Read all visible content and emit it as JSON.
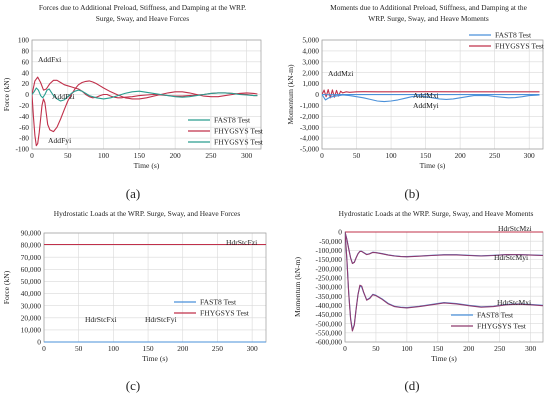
{
  "chart_data": [
    {
      "id": "a",
      "type": "line",
      "panel_label": "(a)",
      "title": "Forces due to Additional Preload, Stiffness, and Damping at the WRP. Surge, Sway, and Heave Forces",
      "xlabel": "Time (s)",
      "ylabel": "Force (kN)",
      "xlim": [
        0,
        320
      ],
      "ylim": [
        -100,
        100
      ],
      "xticks": [
        0,
        50,
        100,
        150,
        200,
        250,
        300
      ],
      "yticks": [
        -100,
        -80,
        -60,
        -40,
        -20,
        0,
        20,
        40,
        60,
        80,
        100
      ],
      "grid": true,
      "legend": "bottom-right",
      "legend_entries": [
        "FAST8 Test",
        "FHYGSYS Test",
        "FHYGSYS Test"
      ],
      "annotations": [
        "AddFxi",
        "AddFzi",
        "AddFyi"
      ],
      "series": [
        {
          "name": "AddFxi",
          "color": "#c0304a",
          "x": [
            0,
            4,
            8,
            12,
            16,
            20,
            25,
            30,
            35,
            40,
            45,
            50,
            55,
            60,
            65,
            70,
            75,
            80,
            85,
            90,
            95,
            100,
            105,
            110,
            115,
            120,
            125,
            130,
            140,
            150,
            160,
            170,
            180,
            190,
            200,
            210,
            220,
            230,
            240,
            250,
            260,
            270,
            280,
            290,
            300,
            310,
            315
          ],
          "y": [
            0,
            25,
            32,
            22,
            8,
            10,
            20,
            26,
            26,
            22,
            18,
            16,
            14,
            12,
            10,
            6,
            0,
            -4,
            -6,
            -5,
            -2,
            0,
            0,
            -3,
            -5,
            -6,
            -6,
            -5,
            -4,
            -2,
            -1,
            0,
            -1,
            -2,
            -3,
            -3,
            -2,
            -1,
            0,
            2,
            3,
            3,
            2,
            1,
            0,
            -2,
            -2
          ]
        },
        {
          "name": "AddFyi",
          "color": "#c0304a",
          "x": [
            0,
            2,
            4,
            6,
            8,
            10,
            12,
            14,
            16,
            18,
            20,
            22,
            25,
            30,
            35,
            40,
            45,
            50,
            55,
            60,
            65,
            70,
            75,
            80,
            85,
            90,
            95,
            100,
            110,
            120,
            130,
            140,
            150,
            160,
            170,
            180,
            190,
            200,
            210,
            220,
            230,
            240,
            250,
            260,
            270,
            280,
            290,
            300,
            310,
            315
          ],
          "y": [
            0,
            -40,
            -75,
            -94,
            -90,
            -70,
            -45,
            -20,
            -8,
            -15,
            -35,
            -55,
            -65,
            -68,
            -60,
            -45,
            -28,
            -12,
            0,
            10,
            18,
            22,
            24,
            25,
            23,
            20,
            16,
            12,
            5,
            -1,
            -6,
            -8,
            -8,
            -6,
            -3,
            0,
            3,
            5,
            5,
            3,
            0,
            -3,
            -4,
            -4,
            -2,
            0,
            2,
            3,
            2,
            1
          ]
        },
        {
          "name": "AddFzi",
          "color": "#2a9d8f",
          "x": [
            0,
            3,
            6,
            9,
            12,
            15,
            18,
            21,
            24,
            27,
            30,
            35,
            40,
            45,
            50,
            55,
            60,
            65,
            70,
            75,
            80,
            90,
            100,
            110,
            120,
            130,
            140,
            150,
            160,
            170,
            180,
            190,
            200,
            210,
            220,
            230,
            240,
            250,
            260,
            270,
            280,
            290,
            300,
            310,
            315
          ],
          "y": [
            0,
            5,
            12,
            8,
            -2,
            -6,
            0,
            8,
            10,
            4,
            -2,
            -8,
            -12,
            -10,
            -4,
            2,
            6,
            8,
            6,
            2,
            -2,
            -6,
            -8,
            -6,
            -2,
            2,
            5,
            6,
            4,
            2,
            0,
            -2,
            -4,
            -5,
            -4,
            -2,
            0,
            2,
            3,
            3,
            2,
            0,
            -1,
            -2,
            -2
          ]
        }
      ]
    },
    {
      "id": "b",
      "type": "line",
      "panel_label": "(b)",
      "title": "Moments due to Additional Preload, Stiffness, and Damping at the WRP. Surge, Sway, and Heave Moments",
      "xlabel": "Time (s)",
      "ylabel": "Momentum (kN-m)",
      "xlim": [
        0,
        320
      ],
      "ylim": [
        -5000,
        5000
      ],
      "xticks": [
        0,
        50,
        100,
        150,
        200,
        250,
        300
      ],
      "yticks": [
        -5000,
        -4000,
        -3000,
        -2000,
        -1000,
        0,
        1000,
        2000,
        3000,
        4000,
        5000
      ],
      "grid": true,
      "legend": "top-right",
      "legend_entries": [
        "FAST8 Test",
        "FHYGSYS Test"
      ],
      "annotations": [
        "AddMzi",
        "AddMxi",
        "AddMyi"
      ],
      "series": [
        {
          "name": "AddMzi",
          "color": "#c0304a",
          "x": [
            0,
            3,
            6,
            9,
            12,
            15,
            18,
            21,
            24,
            27,
            30,
            35,
            40,
            50,
            60,
            80,
            100,
            150,
            200,
            250,
            300,
            315
          ],
          "y": [
            0,
            400,
            -200,
            450,
            -300,
            420,
            -250,
            380,
            -150,
            300,
            150,
            250,
            200,
            250,
            260,
            250,
            250,
            260,
            250,
            250,
            250,
            250
          ]
        },
        {
          "name": "AddMxi",
          "color": "#4a90d9",
          "x": [
            0,
            5,
            10,
            15,
            20,
            25,
            30,
            40,
            50,
            60,
            70,
            80,
            90,
            100,
            110,
            120,
            130,
            140,
            150,
            160,
            170,
            180,
            190,
            200,
            210,
            220,
            230,
            240,
            250,
            260,
            270,
            280,
            290,
            300,
            310,
            315
          ],
          "y": [
            0,
            -500,
            -300,
            -200,
            -150,
            -100,
            -50,
            -100,
            -200,
            -300,
            -450,
            -600,
            -650,
            -600,
            -500,
            -350,
            -200,
            -150,
            -200,
            -300,
            -400,
            -450,
            -400,
            -300,
            -200,
            -100,
            -80,
            -100,
            -180,
            -250,
            -300,
            -280,
            -200,
            -100,
            -60,
            -50
          ]
        },
        {
          "name": "AddMyi",
          "color": "#4a90d9",
          "x": [
            0,
            10,
            20,
            30,
            40,
            50,
            100,
            150,
            200,
            250,
            300,
            315
          ],
          "y": [
            0,
            -30,
            -20,
            -10,
            -10,
            -10,
            -10,
            -10,
            -10,
            -10,
            -10,
            -10
          ]
        }
      ]
    },
    {
      "id": "c",
      "type": "line",
      "panel_label": "(c)",
      "title": "Hydrostatic Loads at the WRP. Surge, Sway, and Heave Forces",
      "xlabel": "Time (s)",
      "ylabel": "Force (kN)",
      "xlim": [
        0,
        320
      ],
      "ylim": [
        0,
        90000
      ],
      "xticks": [
        0,
        50,
        100,
        150,
        200,
        250,
        300
      ],
      "yticks": [
        0,
        10000,
        20000,
        30000,
        40000,
        50000,
        60000,
        70000,
        80000,
        90000
      ],
      "grid": true,
      "legend": "bottom-right",
      "legend_entries": [
        "FAST8 Test",
        "FHYGSYS Test"
      ],
      "annotations": [
        "HdrStcFzi",
        "HdrStcFxi",
        "HdrStcFyi"
      ],
      "series": [
        {
          "name": "HdrStcFzi",
          "color": "#c0304a",
          "x": [
            0,
            320
          ],
          "y": [
            80500,
            80500
          ]
        },
        {
          "name": "HdrStcFxi",
          "color": "#c0304a",
          "x": [
            0,
            320
          ],
          "y": [
            0,
            0
          ]
        },
        {
          "name": "HdrStcFyi",
          "color": "#4a90d9",
          "x": [
            0,
            320
          ],
          "y": [
            0,
            0
          ]
        }
      ]
    },
    {
      "id": "d",
      "type": "line",
      "panel_label": "(d)",
      "title": "Hydrostatic Loads at the WRP. Surge, Sway, and Heave Moments",
      "xlabel": "Time (s)",
      "ylabel": "Momentum (kN-m)",
      "xlim": [
        0,
        320
      ],
      "ylim": [
        -600000,
        0
      ],
      "xticks": [
        0,
        50,
        100,
        150,
        200,
        250,
        300
      ],
      "yticks": [
        -600000,
        -550000,
        -500000,
        -450000,
        -400000,
        -350000,
        -300000,
        -250000,
        -200000,
        -150000,
        -100000,
        -50000,
        0
      ],
      "grid": true,
      "legend": "bottom-right",
      "legend_entries": [
        "FAST8 Test",
        "FHYGSYS Test"
      ],
      "annotations": [
        "HdrStcMzi",
        "HdrStcMyi",
        "HdrStcMxi"
      ],
      "series": [
        {
          "name": "HdrStcMzi",
          "color": "#c0304a",
          "x": [
            0,
            320
          ],
          "y": [
            0,
            0
          ]
        },
        {
          "name": "HdrStcMyi (FAST8)",
          "color": "#4a90d9",
          "x": [
            0,
            3,
            6,
            9,
            12,
            15,
            18,
            21,
            24,
            27,
            30,
            35,
            40,
            45,
            50,
            60,
            70,
            80,
            90,
            100,
            120,
            140,
            160,
            180,
            200,
            220,
            240,
            260,
            280,
            300,
            320
          ],
          "y": [
            0,
            -40000,
            -90000,
            -140000,
            -170000,
            -165000,
            -140000,
            -118000,
            -105000,
            -105000,
            -112000,
            -122000,
            -118000,
            -110000,
            -112000,
            -118000,
            -125000,
            -130000,
            -133000,
            -134000,
            -131000,
            -127000,
            -124000,
            -124000,
            -127000,
            -130000,
            -127000,
            -123000,
            -123000,
            -125000,
            -127000
          ]
        },
        {
          "name": "HdrStcMyi (FHYGSYS)",
          "color": "#8e3a6e",
          "x": [
            0,
            3,
            6,
            9,
            12,
            15,
            18,
            21,
            24,
            27,
            30,
            35,
            40,
            45,
            50,
            60,
            70,
            80,
            90,
            100,
            120,
            140,
            160,
            180,
            200,
            220,
            240,
            260,
            280,
            300,
            320
          ],
          "y": [
            0,
            -42000,
            -92000,
            -142000,
            -172000,
            -166000,
            -141000,
            -119000,
            -106000,
            -106000,
            -113000,
            -123000,
            -119000,
            -111000,
            -113000,
            -119000,
            -126000,
            -131000,
            -134000,
            -135000,
            -132000,
            -128000,
            -125000,
            -125000,
            -128000,
            -131000,
            -128000,
            -124000,
            -124000,
            -126000,
            -128000
          ]
        },
        {
          "name": "HdrStcMxi (FAST8)",
          "color": "#4a90d9",
          "x": [
            0,
            3,
            6,
            9,
            12,
            15,
            18,
            21,
            24,
            27,
            30,
            35,
            40,
            45,
            50,
            60,
            70,
            80,
            90,
            100,
            120,
            140,
            160,
            180,
            200,
            220,
            240,
            260,
            280,
            300,
            320
          ],
          "y": [
            0,
            -150000,
            -330000,
            -470000,
            -535000,
            -505000,
            -420000,
            -340000,
            -295000,
            -300000,
            -330000,
            -370000,
            -360000,
            -340000,
            -345000,
            -365000,
            -390000,
            -405000,
            -410000,
            -412000,
            -405000,
            -395000,
            -385000,
            -390000,
            -400000,
            -408000,
            -405000,
            -395000,
            -392000,
            -395000,
            -400000
          ]
        },
        {
          "name": "HdrStcMxi (FHYGSYS)",
          "color": "#8e3a6e",
          "x": [
            0,
            3,
            6,
            9,
            12,
            15,
            18,
            21,
            24,
            27,
            30,
            35,
            40,
            45,
            50,
            60,
            70,
            80,
            90,
            100,
            120,
            140,
            160,
            180,
            200,
            220,
            240,
            260,
            280,
            300,
            320
          ],
          "y": [
            0,
            -152000,
            -335000,
            -475000,
            -540000,
            -508000,
            -422000,
            -342000,
            -290000,
            -295000,
            -328000,
            -372000,
            -362000,
            -342000,
            -347000,
            -367000,
            -392000,
            -407000,
            -412000,
            -414000,
            -407000,
            -397000,
            -387000,
            -392000,
            -402000,
            -410000,
            -407000,
            -397000,
            -394000,
            -397000,
            -402000
          ]
        }
      ]
    }
  ]
}
